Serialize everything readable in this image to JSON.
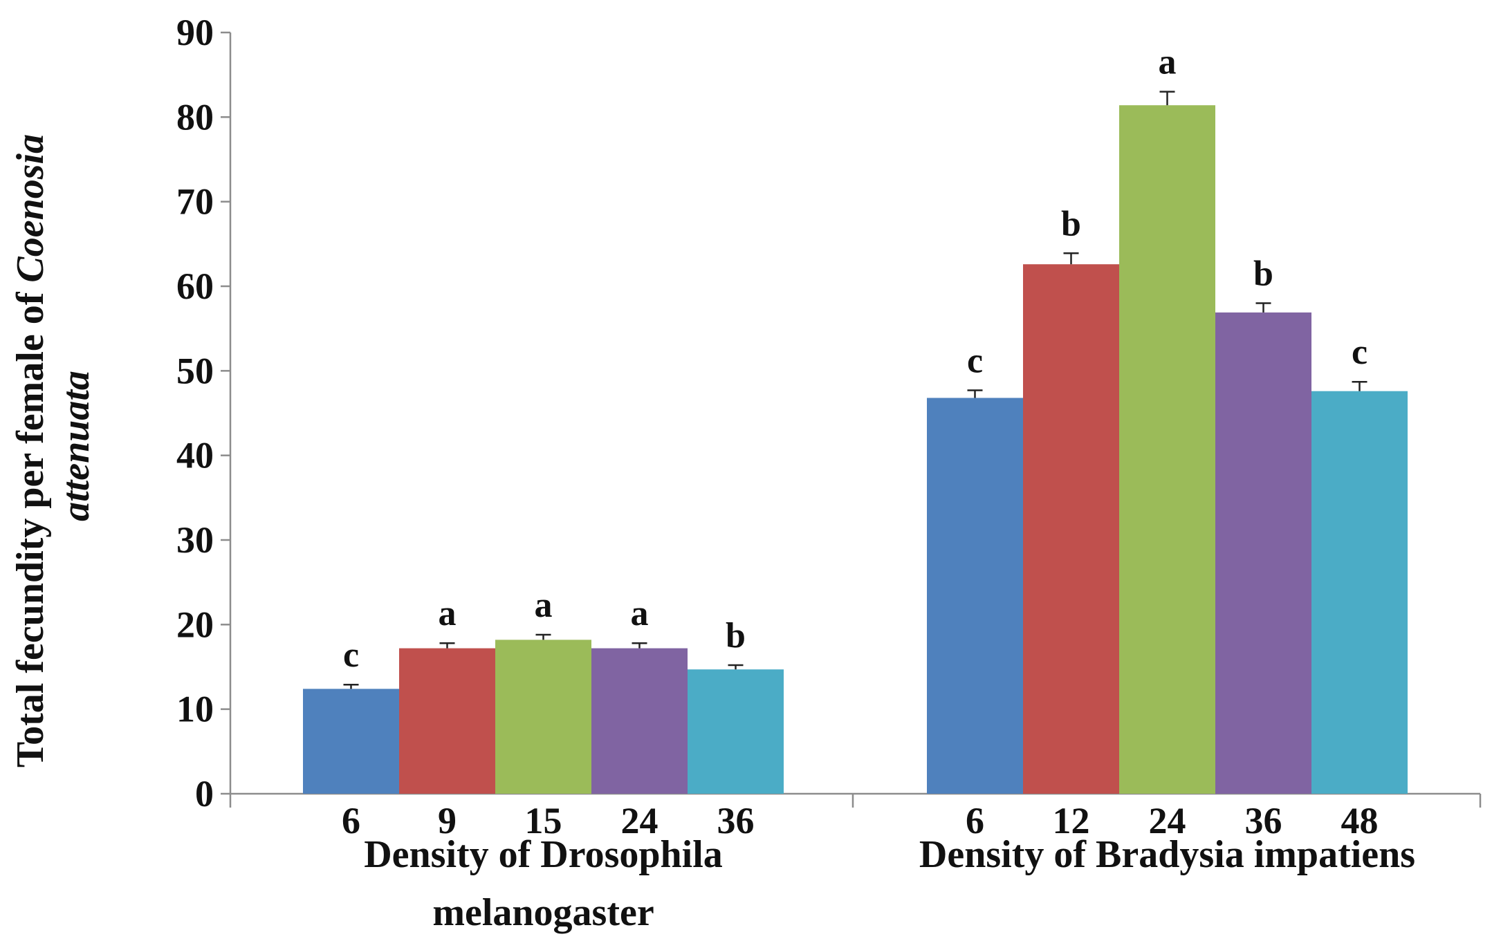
{
  "chart_data": {
    "type": "bar",
    "ylabel_prefix": "Total fecundity per female of ",
    "ylabel_species_1": "Coenosia",
    "ylabel_species_2": "attenuata",
    "ylim": [
      0,
      90
    ],
    "yticks": [
      "0",
      "10",
      "20",
      "30",
      "40",
      "50",
      "60",
      "70",
      "80",
      "90"
    ],
    "ytick_values": [
      0,
      10,
      20,
      30,
      40,
      50,
      60,
      70,
      80,
      90
    ],
    "colors": [
      "#4F81BD",
      "#C0504D",
      "#9BBB59",
      "#8064A2",
      "#4BACC6"
    ],
    "groups": [
      {
        "label_line1": "Density of Drosophila",
        "label_line2": "melanogaster",
        "categories": [
          "6",
          "9",
          "15",
          "24",
          "36"
        ],
        "values": [
          12.4,
          17.2,
          18.2,
          17.2,
          14.7
        ],
        "errors": [
          0.5,
          0.6,
          0.6,
          0.6,
          0.5
        ],
        "letters": [
          "c",
          "a",
          "a",
          "a",
          "b"
        ]
      },
      {
        "label_line1": "Density of Bradysia impatiens",
        "label_line2": "",
        "categories": [
          "6",
          "12",
          "24",
          "36",
          "48"
        ],
        "values": [
          46.8,
          62.6,
          81.4,
          56.9,
          47.6
        ],
        "errors": [
          0.9,
          1.3,
          1.6,
          1.1,
          1.1
        ],
        "letters": [
          "c",
          "b",
          "a",
          "b",
          "c"
        ]
      }
    ]
  }
}
